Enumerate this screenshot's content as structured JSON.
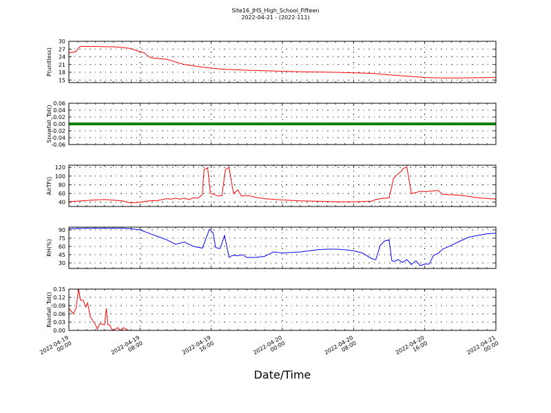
{
  "figure": {
    "title": "Site16_JHS_High_School_Fifteen",
    "subtitle": "2022-04-21 - (2022-111)",
    "xlabel": "Date/Time",
    "x_ticks": [
      "2022-04-19\n00:00",
      "2022-04-19\n08:00",
      "2022-04-19\n16:00",
      "2022-04-20\n00:00",
      "2022-04-20\n08:00",
      "2022-04-20\n16:00",
      "2022-04-21\n00:00"
    ],
    "x_range_hours": [
      0,
      48
    ]
  },
  "chart_data": [
    {
      "type": "line",
      "ylabel": "P(unitless)",
      "ylim": [
        14,
        30
      ],
      "yticks": [
        15,
        18,
        21,
        24,
        27,
        30
      ],
      "grid": true,
      "color": "#ff0000",
      "series": [
        {
          "x": [
            0,
            0.8,
            1.1,
            1.3,
            2,
            3,
            4,
            5,
            6,
            7,
            7.5,
            8,
            8.5,
            9,
            9.3,
            11,
            12,
            13,
            14,
            15,
            16,
            17,
            18,
            20,
            22,
            24,
            26,
            28,
            30,
            32,
            34,
            35,
            36,
            38,
            40,
            42,
            44,
            46,
            48
          ],
          "values": [
            25.5,
            26,
            27.5,
            28,
            28,
            28,
            27.9,
            27.9,
            27.6,
            27.2,
            26.5,
            26,
            25.5,
            24,
            23.6,
            23,
            22,
            21,
            20.5,
            20,
            19.6,
            19.3,
            19.1,
            18.8,
            18.6,
            18.4,
            18.2,
            18.1,
            18,
            17.8,
            17.6,
            17.3,
            17,
            16.5,
            16,
            15.8,
            15.8,
            15.9,
            16
          ]
        }
      ]
    },
    {
      "type": "line",
      "ylabel": "Snowfall_Tot()",
      "ylim": [
        -0.06,
        0.06
      ],
      "yticks": [
        -0.06,
        -0.04,
        -0.02,
        0.0,
        0.02,
        0.04,
        0.06
      ],
      "grid": true,
      "color": "#008000",
      "series": [
        {
          "x": [
            0,
            48
          ],
          "values": [
            0,
            0
          ]
        }
      ]
    },
    {
      "type": "line",
      "ylabel": "AirTF()",
      "ylim": [
        30,
        125
      ],
      "yticks": [
        40,
        60,
        80,
        100,
        120
      ],
      "grid": true,
      "color": "#ff0000",
      "series": [
        {
          "x": [
            0,
            2,
            4,
            6,
            7,
            8,
            9,
            10,
            11,
            11.5,
            12,
            12.5,
            13,
            13.5,
            14,
            14.5,
            15,
            15.2,
            15.6,
            15.9,
            16.3,
            16.8,
            17.2,
            17.6,
            18,
            18.5,
            19,
            19.4,
            19.8,
            20.2,
            20.6,
            21,
            22,
            24,
            26,
            28,
            30,
            32,
            34,
            34.5,
            35,
            36,
            36.5,
            37,
            37.3,
            37.6,
            38,
            38.5,
            39,
            39.5,
            40,
            40.5,
            41,
            41.5,
            42,
            44,
            46,
            48
          ],
          "values": [
            41,
            44,
            46,
            43,
            38,
            40,
            43,
            44,
            48,
            47,
            49,
            47,
            49,
            46,
            50,
            49,
            57,
            115,
            119,
            60,
            58,
            54,
            55,
            115,
            120,
            60,
            68,
            54,
            55,
            55,
            53,
            51,
            48,
            45,
            43,
            42,
            41,
            41,
            42,
            46,
            48,
            50,
            95,
            105,
            110,
            118,
            120,
            60,
            62,
            65,
            64,
            65,
            66,
            67,
            58,
            56,
            50,
            47
          ]
        }
      ]
    },
    {
      "type": "line",
      "ylabel": "RH(%)",
      "ylim": [
        20,
        95
      ],
      "yticks": [
        30,
        45,
        60,
        75,
        90
      ],
      "grid": true,
      "color": "#0000ff",
      "series": [
        {
          "x": [
            0,
            2,
            4,
            6,
            7,
            8,
            9,
            10,
            11,
            12,
            13,
            14,
            15,
            15.8,
            16.2,
            16.5,
            17,
            17.5,
            18,
            18.3,
            18.7,
            19,
            19.5,
            20,
            21,
            22,
            23,
            24,
            25,
            26,
            27,
            28,
            29,
            30,
            31,
            32,
            33,
            34,
            34.5,
            35,
            35.5,
            36,
            36.3,
            36.6,
            37,
            37.5,
            38,
            38.5,
            39,
            39.5,
            40,
            40.5,
            41,
            41.5,
            42,
            43,
            44,
            45,
            46,
            47,
            48
          ],
          "values": [
            92,
            93,
            93,
            93,
            92,
            90,
            84,
            78,
            72,
            64,
            68,
            60,
            57,
            91,
            85,
            58,
            56,
            80,
            40,
            43,
            44,
            43,
            45,
            40,
            40,
            42,
            50,
            48,
            49,
            50,
            52,
            54,
            55,
            55,
            54,
            52,
            48,
            38,
            36,
            62,
            70,
            72,
            34,
            33,
            36,
            31,
            36,
            27,
            34,
            25,
            28,
            28,
            44,
            47,
            55,
            62,
            70,
            77,
            80,
            83,
            84
          ]
        }
      ]
    },
    {
      "type": "line",
      "ylabel": "Rainfall_Tot()",
      "ylim": [
        0,
        0.15
      ],
      "yticks": [
        0.0,
        0.03,
        0.06,
        0.09,
        0.12,
        0.15
      ],
      "grid": true,
      "color": "#ff0000",
      "series": [
        {
          "x": [
            0,
            0.5,
            0.8,
            1.1,
            1.3,
            1.6,
            1.9,
            2.1,
            2.4,
            2.7,
            3,
            3.2,
            3.5,
            4,
            4.2,
            4.4,
            4.6,
            4.8,
            5,
            5.2,
            5.5,
            5.8,
            6.1,
            6.4,
            6.7,
            7,
            8,
            12,
            20,
            30,
            40,
            48
          ],
          "values": [
            0.08,
            0.06,
            0.08,
            0.15,
            0.11,
            0.11,
            0.085,
            0.1,
            0.05,
            0.035,
            0.02,
            0.005,
            0.025,
            0.02,
            0.08,
            0.02,
            0.02,
            0.005,
            0.0,
            0.005,
            0.01,
            0.0,
            0.01,
            0.005,
            0.0,
            0.0,
            0.0,
            0.0,
            0.0,
            0.0,
            0.0,
            0.0
          ]
        }
      ]
    }
  ]
}
